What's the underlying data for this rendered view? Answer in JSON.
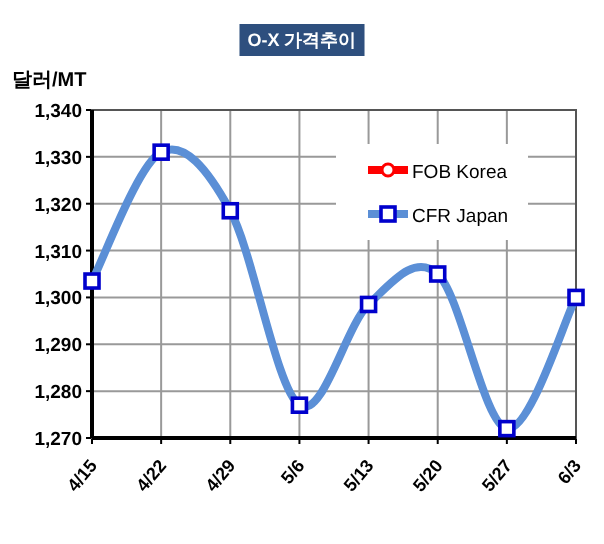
{
  "chart_data": {
    "type": "line",
    "title": "O-X 가격추이",
    "ylabel": "달러/MT",
    "categories": [
      "4/15",
      "4/22",
      "4/29",
      "5/6",
      "5/13",
      "5/20",
      "5/27",
      "6/3"
    ],
    "series": [
      {
        "name": "FOB Korea",
        "color": "#ff0000",
        "marker": "circle",
        "values": [
          null,
          null,
          null,
          null,
          null,
          null,
          null,
          null
        ]
      },
      {
        "name": "CFR Japan",
        "color": "#5b8fd6",
        "marker": "square",
        "values": [
          1303.5,
          1331,
          1318.5,
          1277,
          1298.5,
          1305,
          1272,
          1300
        ]
      }
    ],
    "ylim": [
      1270,
      1340
    ],
    "yticks": [
      {
        "value": 1270,
        "label": "1,270"
      },
      {
        "value": 1280,
        "label": "1,280"
      },
      {
        "value": 1290,
        "label": "1,290"
      },
      {
        "value": 1300,
        "label": "1,300"
      },
      {
        "value": 1310,
        "label": "1,310"
      },
      {
        "value": 1320,
        "label": "1,320"
      },
      {
        "value": 1330,
        "label": "1,330"
      },
      {
        "value": 1340,
        "label": "1,340"
      }
    ],
    "grid": true,
    "legend": "top right"
  }
}
